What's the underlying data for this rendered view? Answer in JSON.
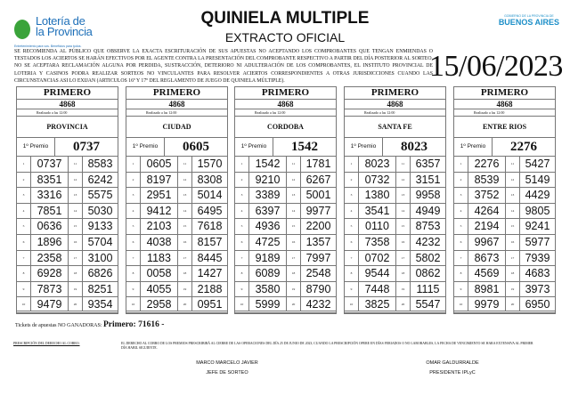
{
  "header": {
    "logo_text": "Lotería de la Provincia",
    "logo_slogan": "Entretenimiento para vos. Beneficios para todos.",
    "title": "QUINIELA MULTIPLE",
    "subtitle": "EXTRACTO OFICIAL",
    "gov_small": "GOBIERNO DE LA PROVINCIA DE",
    "gov_big": "BUENOS AIRES",
    "notice": "SE RECOMIENDA AL PÚBLICO QUE OBSERVE LA EXACTA ESCRITURACIÓN DE SUS APUESTAS NO ACEPTANDO LOS COMPROBANTES QUE TENGAN ENMIENDAS O TESTADOS LOS ACIERTOS SE HARÁN EFECTIVOS POR EL AGENTE CONTRA LA PRESENTACIÓN DEL COMPROBANTE RESPECTIVO A PARTIR DEL DÍA POSTERIOR AL SORTEO, NO SE ACEPTARA RECLAMACIÓN ALGUNA POR PERDIDA, SUSTRACCIÓN, DETERIORO NI ADULTERACIÓN DE LOS COMPROBANTES, EL INSTITUTO PROVINCIAL DE LOTERIA Y CASINOS PODRA REALIZAR SORTEOS NO VINCULANTES PARA RESOLVER ACIERTOS CORRESPONDIENTES A OTRAS JURISDICCIONES CUANDO LAS CIRCUNSTANCIAS ASI LO EXIJAN (ARTICULOS 16º Y 17º DEL REGLAMENTO DE JUEGO DE QUINIELA MÚLTIPLE).",
    "date": "15/06/2023"
  },
  "draws": [
    {
      "session": "PRIMERO",
      "number": "4868",
      "time": "Realizado a las  12:00",
      "name": "PROVINCIA",
      "first_label": "1º Premio",
      "first": "0737",
      "results": [
        "0737",
        "8351",
        "3316",
        "7851",
        "0636",
        "1896",
        "2358",
        "6928",
        "7873",
        "9479",
        "8583",
        "6242",
        "5575",
        "5030",
        "9133",
        "5704",
        "3100",
        "6826",
        "8251",
        "9354"
      ]
    },
    {
      "session": "PRIMERO",
      "number": "4868",
      "time": "Realizado a las  12:00",
      "name": "CIUDAD",
      "first_label": "1º Premio",
      "first": "0605",
      "results": [
        "0605",
        "8197",
        "2951",
        "9412",
        "2103",
        "4038",
        "1183",
        "0058",
        "4055",
        "2958",
        "1570",
        "8308",
        "5014",
        "6495",
        "7618",
        "8157",
        "8445",
        "1427",
        "2188",
        "0951"
      ]
    },
    {
      "session": "PRIMERO",
      "number": "4868",
      "time": "Realizado a las  12:00",
      "name": "CORDOBA",
      "first_label": "1º Premio",
      "first": "1542",
      "results": [
        "1542",
        "9210",
        "3389",
        "6397",
        "4936",
        "4725",
        "9189",
        "6089",
        "3580",
        "5999",
        "1781",
        "6267",
        "5001",
        "9977",
        "2200",
        "1357",
        "7997",
        "2548",
        "8790",
        "4232"
      ]
    },
    {
      "session": "PRIMERO",
      "number": "4868",
      "time": "Realizado a las  12:00",
      "name": "SANTA FE",
      "first_label": "1º Premio",
      "first": "8023",
      "results": [
        "8023",
        "0732",
        "1380",
        "3541",
        "0110",
        "7358",
        "0702",
        "9544",
        "7448",
        "3825",
        "6357",
        "3151",
        "9958",
        "4949",
        "8753",
        "4232",
        "5802",
        "0862",
        "1115",
        "5547"
      ]
    },
    {
      "session": "PRIMERO",
      "number": "4868",
      "time": "Realizado a las  12:00",
      "name": "ENTRE RIOS",
      "first_label": "1º Premio",
      "first": "2276",
      "results": [
        "2276",
        "8539",
        "3752",
        "4264",
        "2194",
        "9967",
        "8673",
        "4569",
        "8981",
        "9979",
        "5427",
        "5149",
        "4429",
        "9805",
        "9241",
        "5977",
        "7939",
        "4683",
        "3973",
        "6950"
      ]
    }
  ],
  "footer": {
    "tickets_label": "Tickets de apuestas NO GANADORAS:",
    "tickets_value": "Primero: 71616 -",
    "presc_label": "PRESCRIPCIÓN DEL DERECHO AL COBRO.",
    "presc_text": "EL DERECHO AL COBRO DE LOS PREMIOS PRESCRIBIRÁ AL CIERRE DE LAS OPERACIONES DEL DÍA 25 DE JUNIO DE 2023, CUANDO LA PRESCRIPCIÓN OPERE EN DÍAS FERIADOS O NO LABORABLES, LA FECHA DE VENCIMIENTO SE HARA EXTENSIVA AL PRIMER DÍA HABIL SIGUIENTE.",
    "sig1_name": "MARCO MARCELO JAVIER",
    "sig1_role": "JEFE DE SORTEO",
    "sig2_name": "OMAR GALDURRALDE",
    "sig2_role": "PRESIDENTE IPLyC"
  }
}
